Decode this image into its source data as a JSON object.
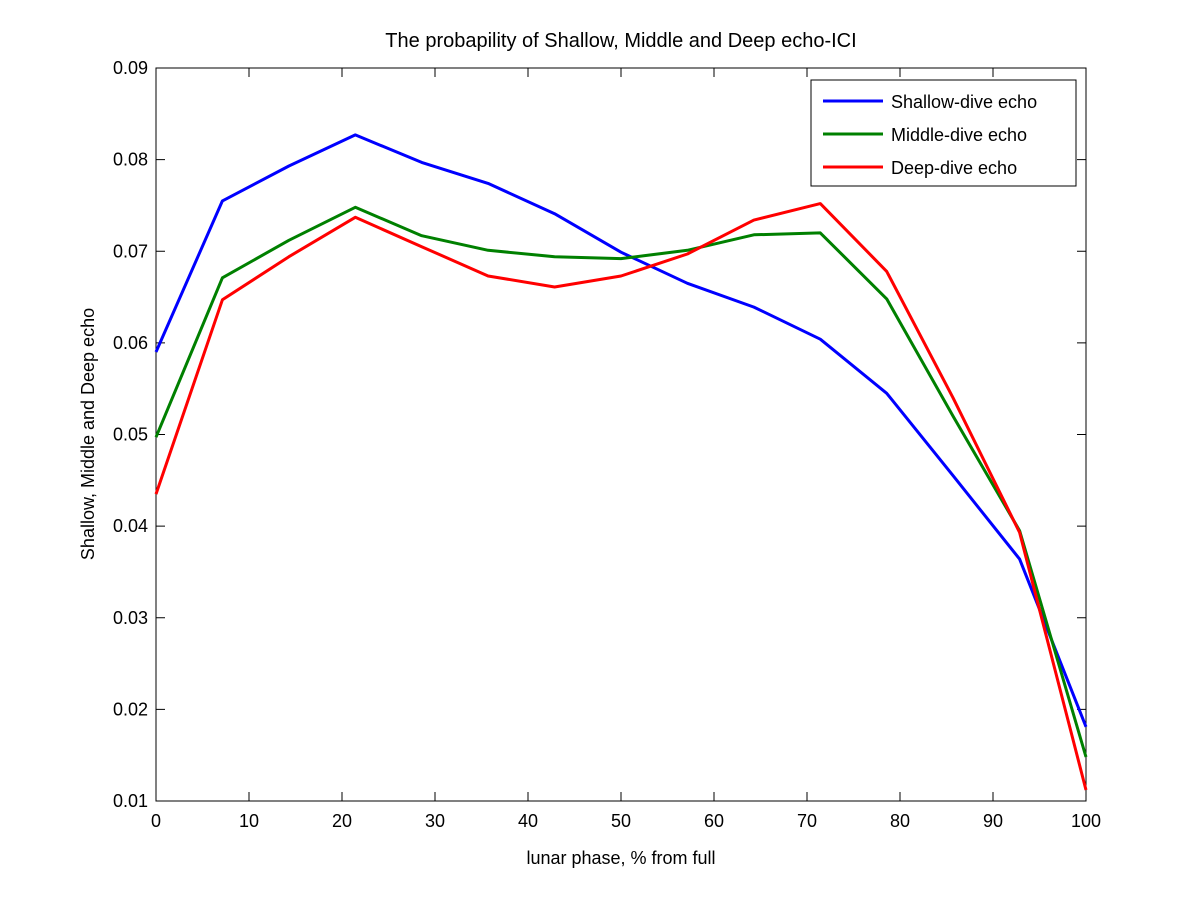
{
  "chart_data": {
    "type": "line",
    "title": "The probapility of Shallow, Middle and Deep echo-ICI",
    "xlabel": "lunar phase, % from full",
    "ylabel": "Shallow, Middle and Deep echo",
    "xlim": [
      0,
      100
    ],
    "ylim": [
      0.01,
      0.09
    ],
    "xticks": [
      "0",
      "10",
      "20",
      "30",
      "40",
      "50",
      "60",
      "70",
      "80",
      "90",
      "100"
    ],
    "yticks": [
      "0.01",
      "0.02",
      "0.03",
      "0.04",
      "0.05",
      "0.06",
      "0.07",
      "0.08",
      "0.09"
    ],
    "grid": false,
    "legend_position": "top-right",
    "x": [
      0,
      7.14,
      14.29,
      21.43,
      28.57,
      35.71,
      42.86,
      50,
      57.14,
      64.29,
      71.43,
      78.57,
      85.71,
      92.86,
      100
    ],
    "series": [
      {
        "name": "Shallow-dive echo",
        "color": "#0000ff",
        "values": [
          0.059,
          0.0755,
          0.0793,
          0.0827,
          0.0797,
          0.0774,
          0.0741,
          0.0699,
          0.0665,
          0.0639,
          0.0604,
          0.0545,
          0.0455,
          0.0364,
          0.0181
        ]
      },
      {
        "name": "Middle-dive echo",
        "color": "#008000",
        "values": [
          0.0497,
          0.0671,
          0.0712,
          0.0748,
          0.0717,
          0.0701,
          0.0694,
          0.0692,
          0.0701,
          0.0718,
          0.072,
          0.0648,
          0.052,
          0.0395,
          0.0148
        ]
      },
      {
        "name": "Deep-dive echo",
        "color": "#ff0000",
        "values": [
          0.0435,
          0.0647,
          0.0694,
          0.0737,
          0.0705,
          0.0673,
          0.0661,
          0.0673,
          0.0697,
          0.0734,
          0.0752,
          0.0678,
          0.054,
          0.0393,
          0.0112
        ]
      }
    ]
  }
}
